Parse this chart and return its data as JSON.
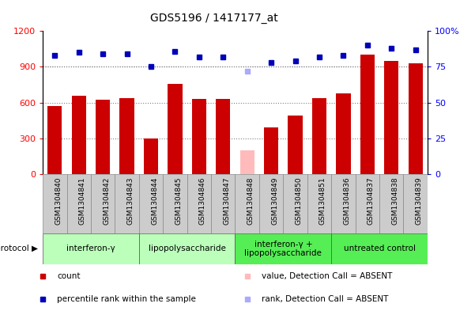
{
  "title": "GDS5196 / 1417177_at",
  "samples": [
    "GSM1304840",
    "GSM1304841",
    "GSM1304842",
    "GSM1304843",
    "GSM1304844",
    "GSM1304845",
    "GSM1304846",
    "GSM1304847",
    "GSM1304848",
    "GSM1304849",
    "GSM1304850",
    "GSM1304851",
    "GSM1304836",
    "GSM1304837",
    "GSM1304838",
    "GSM1304839"
  ],
  "counts": [
    570,
    660,
    625,
    640,
    300,
    760,
    630,
    630,
    200,
    390,
    490,
    640,
    680,
    1000,
    950,
    930
  ],
  "ranks": [
    83,
    85,
    84,
    84,
    75,
    86,
    82,
    82,
    72,
    78,
    79,
    82,
    83,
    90,
    88,
    87
  ],
  "absent_mask": [
    false,
    false,
    false,
    false,
    false,
    false,
    false,
    false,
    true,
    false,
    false,
    false,
    false,
    false,
    false,
    false
  ],
  "groups": [
    {
      "label": "interferon-γ",
      "start": 0,
      "end": 4,
      "color": "#bbffbb"
    },
    {
      "label": "lipopolysaccharide",
      "start": 4,
      "end": 8,
      "color": "#bbffbb"
    },
    {
      "label": "interferon-γ +\nlipopolysaccharide",
      "start": 8,
      "end": 12,
      "color": "#55ee55"
    },
    {
      "label": "untreated control",
      "start": 12,
      "end": 16,
      "color": "#55ee55"
    }
  ],
  "bar_color_present": "#cc0000",
  "bar_color_absent": "#ffbbbb",
  "rank_color_present": "#0000bb",
  "rank_color_absent": "#aaaaff",
  "ylim_left": [
    0,
    1200
  ],
  "ylim_right": [
    0,
    100
  ],
  "yticks_left": [
    0,
    300,
    600,
    900,
    1200
  ],
  "yticks_right": [
    0,
    25,
    50,
    75,
    100
  ],
  "tick_label_bg": "#cccccc"
}
